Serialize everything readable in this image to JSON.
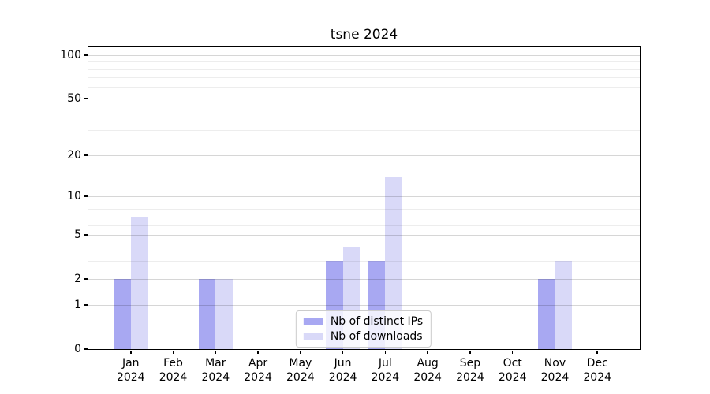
{
  "chart_data": {
    "type": "bar",
    "title": "tsne 2024",
    "categories": [
      "Jan",
      "Feb",
      "Mar",
      "Apr",
      "May",
      "Jun",
      "Jul",
      "Aug",
      "Sep",
      "Oct",
      "Nov",
      "Dec"
    ],
    "year_label": "2024",
    "series": [
      {
        "name": "Nb of distinct IPs",
        "color": "#a8a8f2",
        "values": [
          2,
          0,
          2,
          0,
          0,
          3,
          3,
          0,
          0,
          0,
          2,
          0
        ]
      },
      {
        "name": "Nb of downloads",
        "color": "#d9d9f8",
        "values": [
          7,
          0,
          2,
          0,
          0,
          4,
          14,
          0,
          0,
          0,
          3,
          0
        ]
      }
    ],
    "yscale": "log1p",
    "ylim": [
      0,
      113
    ],
    "xlim": [
      -1,
      12
    ],
    "y_major_ticks": [
      0,
      1,
      2,
      5,
      10,
      20,
      50,
      100
    ],
    "y_minor_ticks": [
      3,
      4,
      6,
      7,
      8,
      9,
      30,
      40,
      60,
      70,
      80,
      90
    ],
    "grid": true,
    "legend_position": "lower center",
    "bar_width_units": 0.4,
    "colors": {
      "spine": "#000000",
      "major_grid": "rgba(0,0,0,0.16)",
      "minor_grid": "rgba(0,0,0,0.07)"
    }
  }
}
